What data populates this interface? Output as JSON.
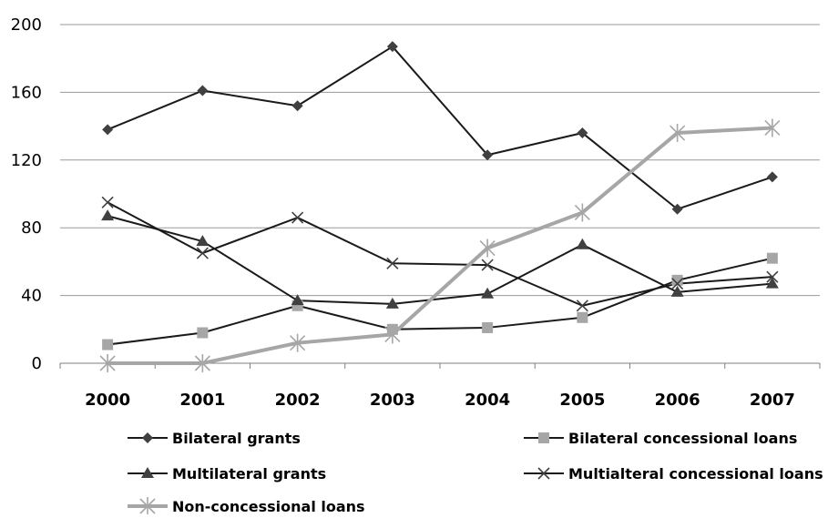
{
  "chart_data": {
    "type": "line",
    "categories": [
      "2000",
      "2001",
      "2002",
      "2003",
      "2004",
      "2005",
      "2006",
      "2007"
    ],
    "ylim": [
      0,
      200
    ],
    "yticks": [
      0,
      40,
      80,
      120,
      160,
      200
    ],
    "grid": true,
    "legend_position": "bottom",
    "series": [
      {
        "name": "Bilateral grants",
        "values": [
          138,
          161,
          152,
          187,
          123,
          136,
          91,
          110
        ],
        "color": "#1a1a1a",
        "marker": "diamond"
      },
      {
        "name": "Bilateral concessional loans",
        "values": [
          11,
          18,
          34,
          20,
          21,
          27,
          49,
          62
        ],
        "color": "#1a1a1a",
        "marker": "square",
        "marker_color": "#a6a6a6"
      },
      {
        "name": "Multilateral grants",
        "values": [
          87,
          72,
          37,
          35,
          41,
          70,
          42,
          47
        ],
        "color": "#1a1a1a",
        "marker": "triangle"
      },
      {
        "name": "Multialteral concessional loans",
        "values": [
          95,
          65,
          86,
          59,
          58,
          34,
          47,
          51
        ],
        "color": "#1a1a1a",
        "marker": "x"
      },
      {
        "name": "Non-concessional loans",
        "values": [
          0,
          0,
          12,
          17,
          68,
          89,
          136,
          139
        ],
        "color": "#a6a6a6",
        "marker": "asterisk"
      }
    ]
  }
}
